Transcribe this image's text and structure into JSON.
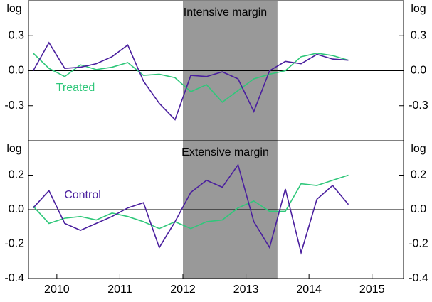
{
  "chart_data": [
    {
      "type": "line",
      "title": "Intensive margin",
      "unit_label": "log",
      "x": [
        2009.625,
        2009.875,
        2010.125,
        2010.375,
        2010.625,
        2010.875,
        2011.125,
        2011.375,
        2011.625,
        2011.875,
        2012.125,
        2012.375,
        2012.625,
        2012.875,
        2013.125,
        2013.375,
        2013.625,
        2013.875,
        2014.125,
        2014.375,
        2014.625
      ],
      "xlim": [
        2009.55,
        2015.5
      ],
      "ylim": [
        -0.6,
        0.6
      ],
      "yticks": [
        -0.3,
        {
          "value": 0,
          "label": "0.0"
        },
        0.3
      ],
      "zero_line": true,
      "shade": [
        2012,
        2013.5
      ],
      "series": [
        {
          "name": "Treated",
          "color": "#2fc77a",
          "values": [
            0.15,
            0.02,
            -0.05,
            0.05,
            0.01,
            0.03,
            0.07,
            -0.04,
            -0.03,
            -0.06,
            -0.18,
            -0.12,
            -0.27,
            -0.17,
            -0.07,
            -0.03,
            0.0,
            0.12,
            0.15,
            0.13,
            0.09
          ]
        },
        {
          "color": "#4a1f9e",
          "values": [
            0.0,
            0.24,
            0.02,
            0.03,
            0.06,
            0.12,
            0.22,
            -0.09,
            -0.28,
            -0.42,
            -0.04,
            -0.05,
            -0.01,
            -0.07,
            -0.35,
            0.0,
            0.08,
            0.06,
            0.14,
            0.1,
            0.09
          ]
        }
      ]
    },
    {
      "type": "line",
      "title": "Extensive margin",
      "unit_label": "log",
      "x": [
        2009.625,
        2009.875,
        2010.125,
        2010.375,
        2010.625,
        2010.875,
        2011.125,
        2011.375,
        2011.625,
        2011.875,
        2012.125,
        2012.375,
        2012.625,
        2012.875,
        2013.125,
        2013.375,
        2013.625,
        2013.875,
        2014.125,
        2014.375,
        2014.625
      ],
      "xlim": [
        2009.55,
        2015.5
      ],
      "xticks": [
        2010,
        2011,
        2012,
        2013,
        2014,
        2015
      ],
      "ylim": [
        -0.4,
        0.4
      ],
      "yticks": [
        -0.4,
        -0.2,
        {
          "value": 0,
          "label": "0.0"
        },
        0.2
      ],
      "zero_line": true,
      "shade": [
        2012,
        2013.5
      ],
      "series": [
        {
          "color": "#2fc77a",
          "values": [
            0.02,
            -0.08,
            -0.05,
            -0.04,
            -0.06,
            -0.02,
            -0.04,
            -0.07,
            -0.11,
            -0.07,
            -0.11,
            -0.07,
            -0.06,
            0.01,
            0.05,
            -0.01,
            -0.01,
            0.15,
            0.14,
            0.17,
            0.2
          ]
        },
        {
          "name": "Control",
          "color": "#4a1f9e",
          "values": [
            0.01,
            0.11,
            -0.08,
            -0.12,
            -0.08,
            -0.04,
            0.01,
            0.04,
            -0.22,
            -0.07,
            0.1,
            0.17,
            0.13,
            0.26,
            -0.07,
            -0.22,
            0.12,
            -0.25,
            0.06,
            0.14,
            0.03
          ]
        }
      ]
    }
  ]
}
